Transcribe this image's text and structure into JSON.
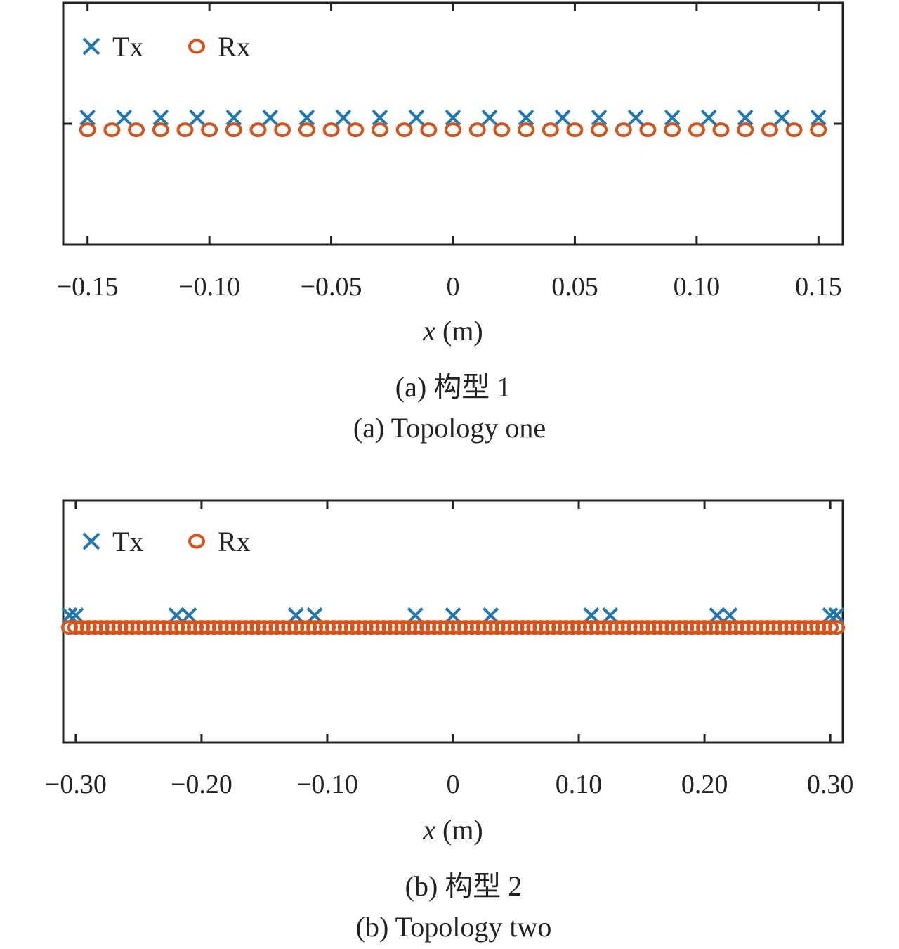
{
  "chart_data": [
    {
      "type": "scatter",
      "xlabel": "x (m)",
      "xlabel_var": "x",
      "xlabel_unit": " (m)",
      "xlim": [
        -0.16,
        0.16
      ],
      "xticks": [
        -0.15,
        -0.1,
        -0.05,
        0,
        0.05,
        0.1,
        0.15
      ],
      "xtick_labels": [
        "−0.15",
        "−0.10",
        "−0.05",
        "0",
        "0.05",
        "0.10",
        "0.15"
      ],
      "legend_position": "top-left",
      "series": [
        {
          "name": "Tx",
          "marker": "x",
          "color": "#1f77b4",
          "y": 1.05,
          "x": [
            -0.15,
            -0.135,
            -0.12,
            -0.105,
            -0.09,
            -0.075,
            -0.06,
            -0.045,
            -0.03,
            -0.015,
            0,
            0.015,
            0.03,
            0.045,
            0.06,
            0.075,
            0.09,
            0.105,
            0.12,
            0.135,
            0.15
          ]
        },
        {
          "name": "Rx",
          "marker": "o",
          "color": "#d95319",
          "y": 0.95,
          "x": [
            -0.15,
            -0.14,
            -0.13,
            -0.12,
            -0.11,
            -0.1,
            -0.09,
            -0.08,
            -0.07,
            -0.06,
            -0.05,
            -0.04,
            -0.03,
            -0.02,
            -0.01,
            0,
            0.01,
            0.02,
            0.03,
            0.04,
            0.05,
            0.06,
            0.07,
            0.08,
            0.09,
            0.1,
            0.11,
            0.12,
            0.13,
            0.14,
            0.15
          ]
        }
      ],
      "caption_cn": "(a) 构型 1",
      "caption_en": "(a) Topology one"
    },
    {
      "type": "scatter",
      "xlabel": "x (m)",
      "xlabel_var": "x",
      "xlabel_unit": " (m)",
      "xlim": [
        -0.31,
        0.31
      ],
      "xticks": [
        -0.3,
        -0.2,
        -0.1,
        0,
        0.1,
        0.2,
        0.3
      ],
      "xtick_labels": [
        "−0.30",
        "−0.20",
        "−0.10",
        "0",
        "0.10",
        "0.20",
        "0.30"
      ],
      "legend_position": "top-left",
      "series": [
        {
          "name": "Tx",
          "marker": "x",
          "color": "#1f77b4",
          "y": 1.05,
          "x": [
            -0.305,
            -0.3,
            -0.22,
            -0.21,
            -0.125,
            -0.11,
            -0.03,
            0,
            0.03,
            0.11,
            0.125,
            0.21,
            0.22,
            0.3,
            0.305
          ]
        },
        {
          "name": "Rx",
          "marker": "o",
          "color": "#d95319",
          "y": 0.95,
          "x_start": -0.305,
          "x_end": 0.305,
          "x_step": 0.005
        }
      ],
      "caption_cn": "(b) 构型 2",
      "caption_en": "(b) Topology two"
    }
  ]
}
